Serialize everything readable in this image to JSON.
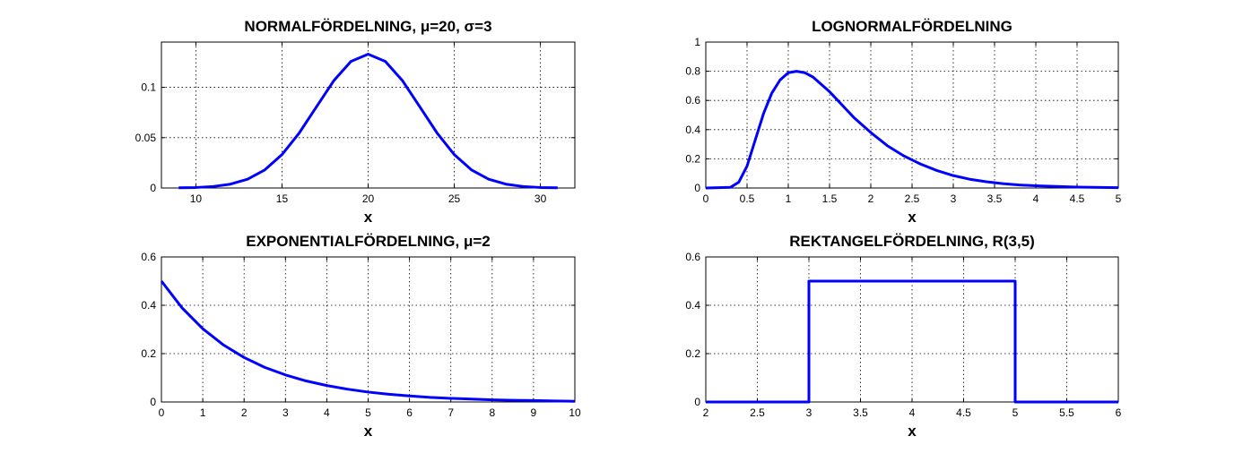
{
  "chart_data": [
    {
      "type": "line",
      "title": "NORMALFÖRDELNING, μ=20, σ=3",
      "xlabel": "x",
      "ylabel": "",
      "xlim": [
        8,
        32
      ],
      "ylim": [
        0,
        0.145
      ],
      "xticks": [
        10,
        15,
        20,
        25,
        30
      ],
      "xtick_labels": [
        "10",
        "15",
        "20",
        "25",
        "30"
      ],
      "yticks": [
        0,
        0.05,
        0.1
      ],
      "ytick_labels": [
        "0",
        "0.05",
        "0.1"
      ],
      "grid": true,
      "color": "#0000ff",
      "series": [
        {
          "x": [
            9,
            10,
            11,
            12,
            13,
            14,
            15,
            16,
            17,
            18,
            19,
            20,
            21,
            22,
            23,
            24,
            25,
            26,
            27,
            28,
            29,
            30,
            31
          ],
          "y": [
            0.0002,
            0.0005,
            0.0015,
            0.0038,
            0.0087,
            0.018,
            0.0332,
            0.0547,
            0.0807,
            0.1065,
            0.1258,
            0.133,
            0.1258,
            0.1065,
            0.0807,
            0.0547,
            0.0332,
            0.018,
            0.0087,
            0.0038,
            0.0015,
            0.0005,
            0.0002
          ]
        }
      ]
    },
    {
      "type": "line",
      "title": "LOGNORMALFÖRDELNING",
      "xlabel": "x",
      "ylabel": "",
      "xlim": [
        0,
        5
      ],
      "ylim": [
        0,
        1
      ],
      "xticks": [
        0,
        0.5,
        1,
        1.5,
        2,
        2.5,
        3,
        3.5,
        4,
        4.5,
        5
      ],
      "xtick_labels": [
        "0",
        "0.5",
        "1",
        "1.5",
        "2",
        "2.5",
        "3",
        "3.5",
        "4",
        "4.5",
        "5"
      ],
      "yticks": [
        0,
        0.2,
        0.4,
        0.6,
        0.8,
        1
      ],
      "ytick_labels": [
        "0",
        "0.2",
        "0.4",
        "0.6",
        "0.8",
        "1"
      ],
      "grid": true,
      "color": "#0000ff",
      "series": [
        {
          "x": [
            0,
            0.3,
            0.4,
            0.5,
            0.6,
            0.7,
            0.8,
            0.9,
            1.0,
            1.1,
            1.2,
            1.3,
            1.4,
            1.5,
            1.6,
            1.7,
            1.8,
            1.9,
            2.0,
            2.2,
            2.4,
            2.6,
            2.8,
            3.0,
            3.2,
            3.4,
            3.6,
            3.8,
            4.0,
            4.5,
            5.0
          ],
          "y": [
            0,
            0.005,
            0.04,
            0.15,
            0.33,
            0.51,
            0.65,
            0.74,
            0.79,
            0.8,
            0.79,
            0.76,
            0.71,
            0.66,
            0.6,
            0.54,
            0.48,
            0.43,
            0.38,
            0.29,
            0.22,
            0.165,
            0.12,
            0.085,
            0.06,
            0.043,
            0.03,
            0.021,
            0.015,
            0.006,
            0.002
          ]
        }
      ]
    },
    {
      "type": "line",
      "title": "EXPONENTIALFÖRDELNING, μ=2",
      "xlabel": "x",
      "ylabel": "",
      "xlim": [
        0,
        10
      ],
      "ylim": [
        0,
        0.6
      ],
      "xticks": [
        0,
        1,
        2,
        3,
        4,
        5,
        6,
        7,
        8,
        9,
        10
      ],
      "xtick_labels": [
        "0",
        "1",
        "2",
        "3",
        "4",
        "5",
        "6",
        "7",
        "8",
        "9",
        "10"
      ],
      "yticks": [
        0,
        0.2,
        0.4,
        0.6
      ],
      "ytick_labels": [
        "0",
        "0.2",
        "0.4",
        "0.6"
      ],
      "grid": true,
      "color": "#0000ff",
      "series": [
        {
          "x": [
            0,
            0.5,
            1,
            1.5,
            2,
            2.5,
            3,
            3.5,
            4,
            4.5,
            5,
            5.5,
            6,
            6.5,
            7,
            7.5,
            8,
            8.5,
            9,
            9.5,
            10
          ],
          "y": [
            0.5,
            0.389,
            0.303,
            0.236,
            0.184,
            0.143,
            0.112,
            0.087,
            0.068,
            0.053,
            0.041,
            0.032,
            0.025,
            0.019,
            0.015,
            0.012,
            0.009,
            0.007,
            0.006,
            0.004,
            0.003
          ]
        }
      ]
    },
    {
      "type": "line",
      "title": "REKTANGELFÖRDELNING, R(3,5)",
      "xlabel": "x",
      "ylabel": "",
      "xlim": [
        2,
        6
      ],
      "ylim": [
        0,
        0.6
      ],
      "xticks": [
        2,
        2.5,
        3,
        3.5,
        4,
        4.5,
        5,
        5.5,
        6
      ],
      "xtick_labels": [
        "2",
        "2.5",
        "3",
        "3.5",
        "4",
        "4.5",
        "5",
        "5.5",
        "6"
      ],
      "yticks": [
        0,
        0.2,
        0.4,
        0.6
      ],
      "ytick_labels": [
        "0",
        "0.2",
        "0.4",
        "0.6"
      ],
      "grid": true,
      "color": "#0000ff",
      "series": [
        {
          "x": [
            2,
            3,
            3,
            5,
            5,
            6
          ],
          "y": [
            0,
            0,
            0.5,
            0.5,
            0,
            0
          ]
        }
      ]
    }
  ]
}
